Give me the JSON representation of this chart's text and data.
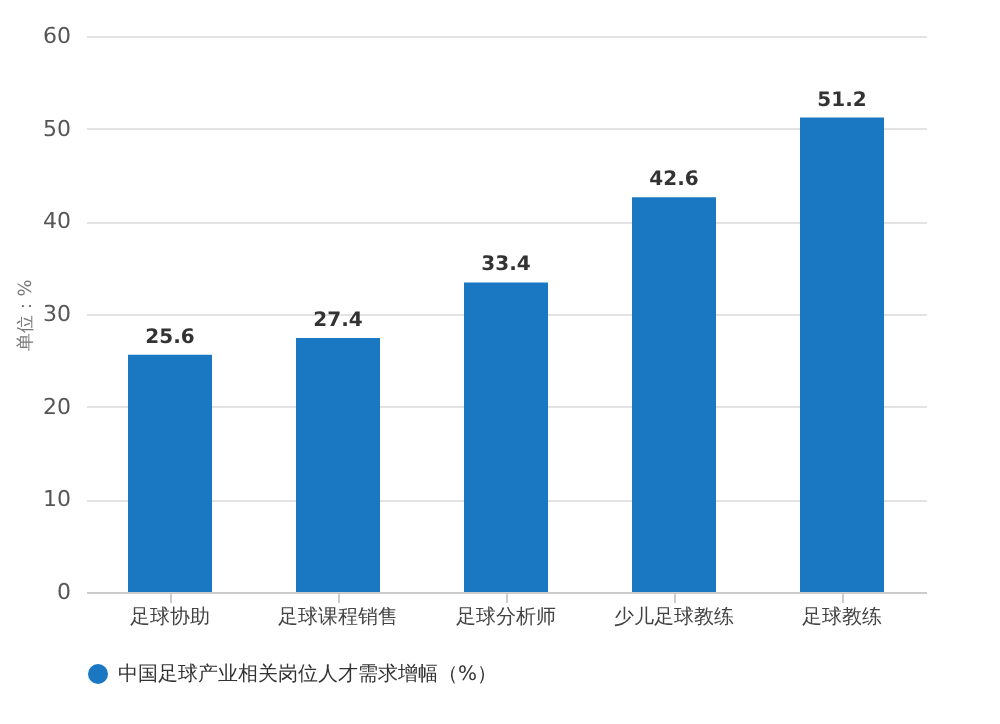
{
  "chart_data": {
    "type": "bar",
    "ylabel": "单位：%",
    "categories": [
      "足球协助",
      "足球课程销售",
      "足球分析师",
      "少儿足球教练",
      "足球教练"
    ],
    "series": [
      {
        "name": "中国足球产业相关岗位人才需求增幅（%）",
        "color": "#1a78c2",
        "values": [
          25.6,
          27.4,
          33.4,
          42.6,
          51.2
        ]
      }
    ],
    "ylim": [
      0,
      60
    ],
    "yticks": [
      0,
      10,
      20,
      30,
      40,
      50,
      60
    ],
    "grid": "y",
    "legend": "bottom",
    "data_labels": true
  }
}
